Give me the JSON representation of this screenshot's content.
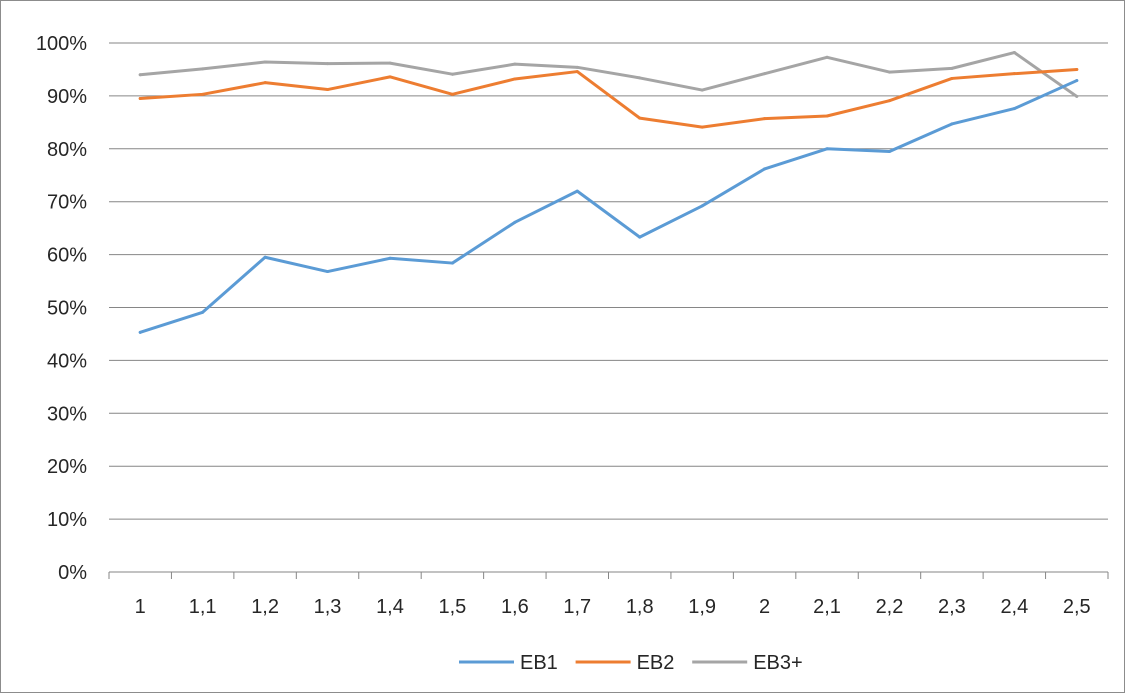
{
  "chart_data": {
    "type": "line",
    "title": "",
    "xlabel": "",
    "ylabel": "",
    "categories": [
      "1",
      "1,1",
      "1,2",
      "1,3",
      "1,4",
      "1,5",
      "1,6",
      "1,7",
      "1,8",
      "1,9",
      "2",
      "2,1",
      "2,2",
      "2,3",
      "2,4",
      "2,5"
    ],
    "y_ticks": [
      "0%",
      "10%",
      "20%",
      "30%",
      "40%",
      "50%",
      "60%",
      "70%",
      "80%",
      "90%",
      "100%"
    ],
    "ylim": [
      0,
      100
    ],
    "y_unit": "%",
    "grid": true,
    "legend_position": "bottom",
    "series": [
      {
        "name": "EB1",
        "color": "#5b9bd5",
        "values": [
          45.3,
          49.1,
          59.5,
          56.8,
          59.3,
          58.4,
          66.1,
          72.0,
          63.3,
          69.2,
          76.2,
          80.0,
          79.5,
          84.7,
          87.6,
          92.9
        ]
      },
      {
        "name": "EB2",
        "color": "#ed7d31",
        "values": [
          89.5,
          90.3,
          92.5,
          91.2,
          93.6,
          90.3,
          93.2,
          94.6,
          85.8,
          84.1,
          85.7,
          86.2,
          89.1,
          93.3,
          94.2,
          95.0
        ]
      },
      {
        "name": "EB3+",
        "color": "#a5a5a5",
        "values": [
          94.0,
          95.1,
          96.4,
          96.1,
          96.2,
          94.1,
          96.0,
          95.4,
          93.4,
          91.1,
          94.2,
          97.3,
          94.5,
          95.2,
          98.2,
          89.9
        ]
      }
    ]
  }
}
